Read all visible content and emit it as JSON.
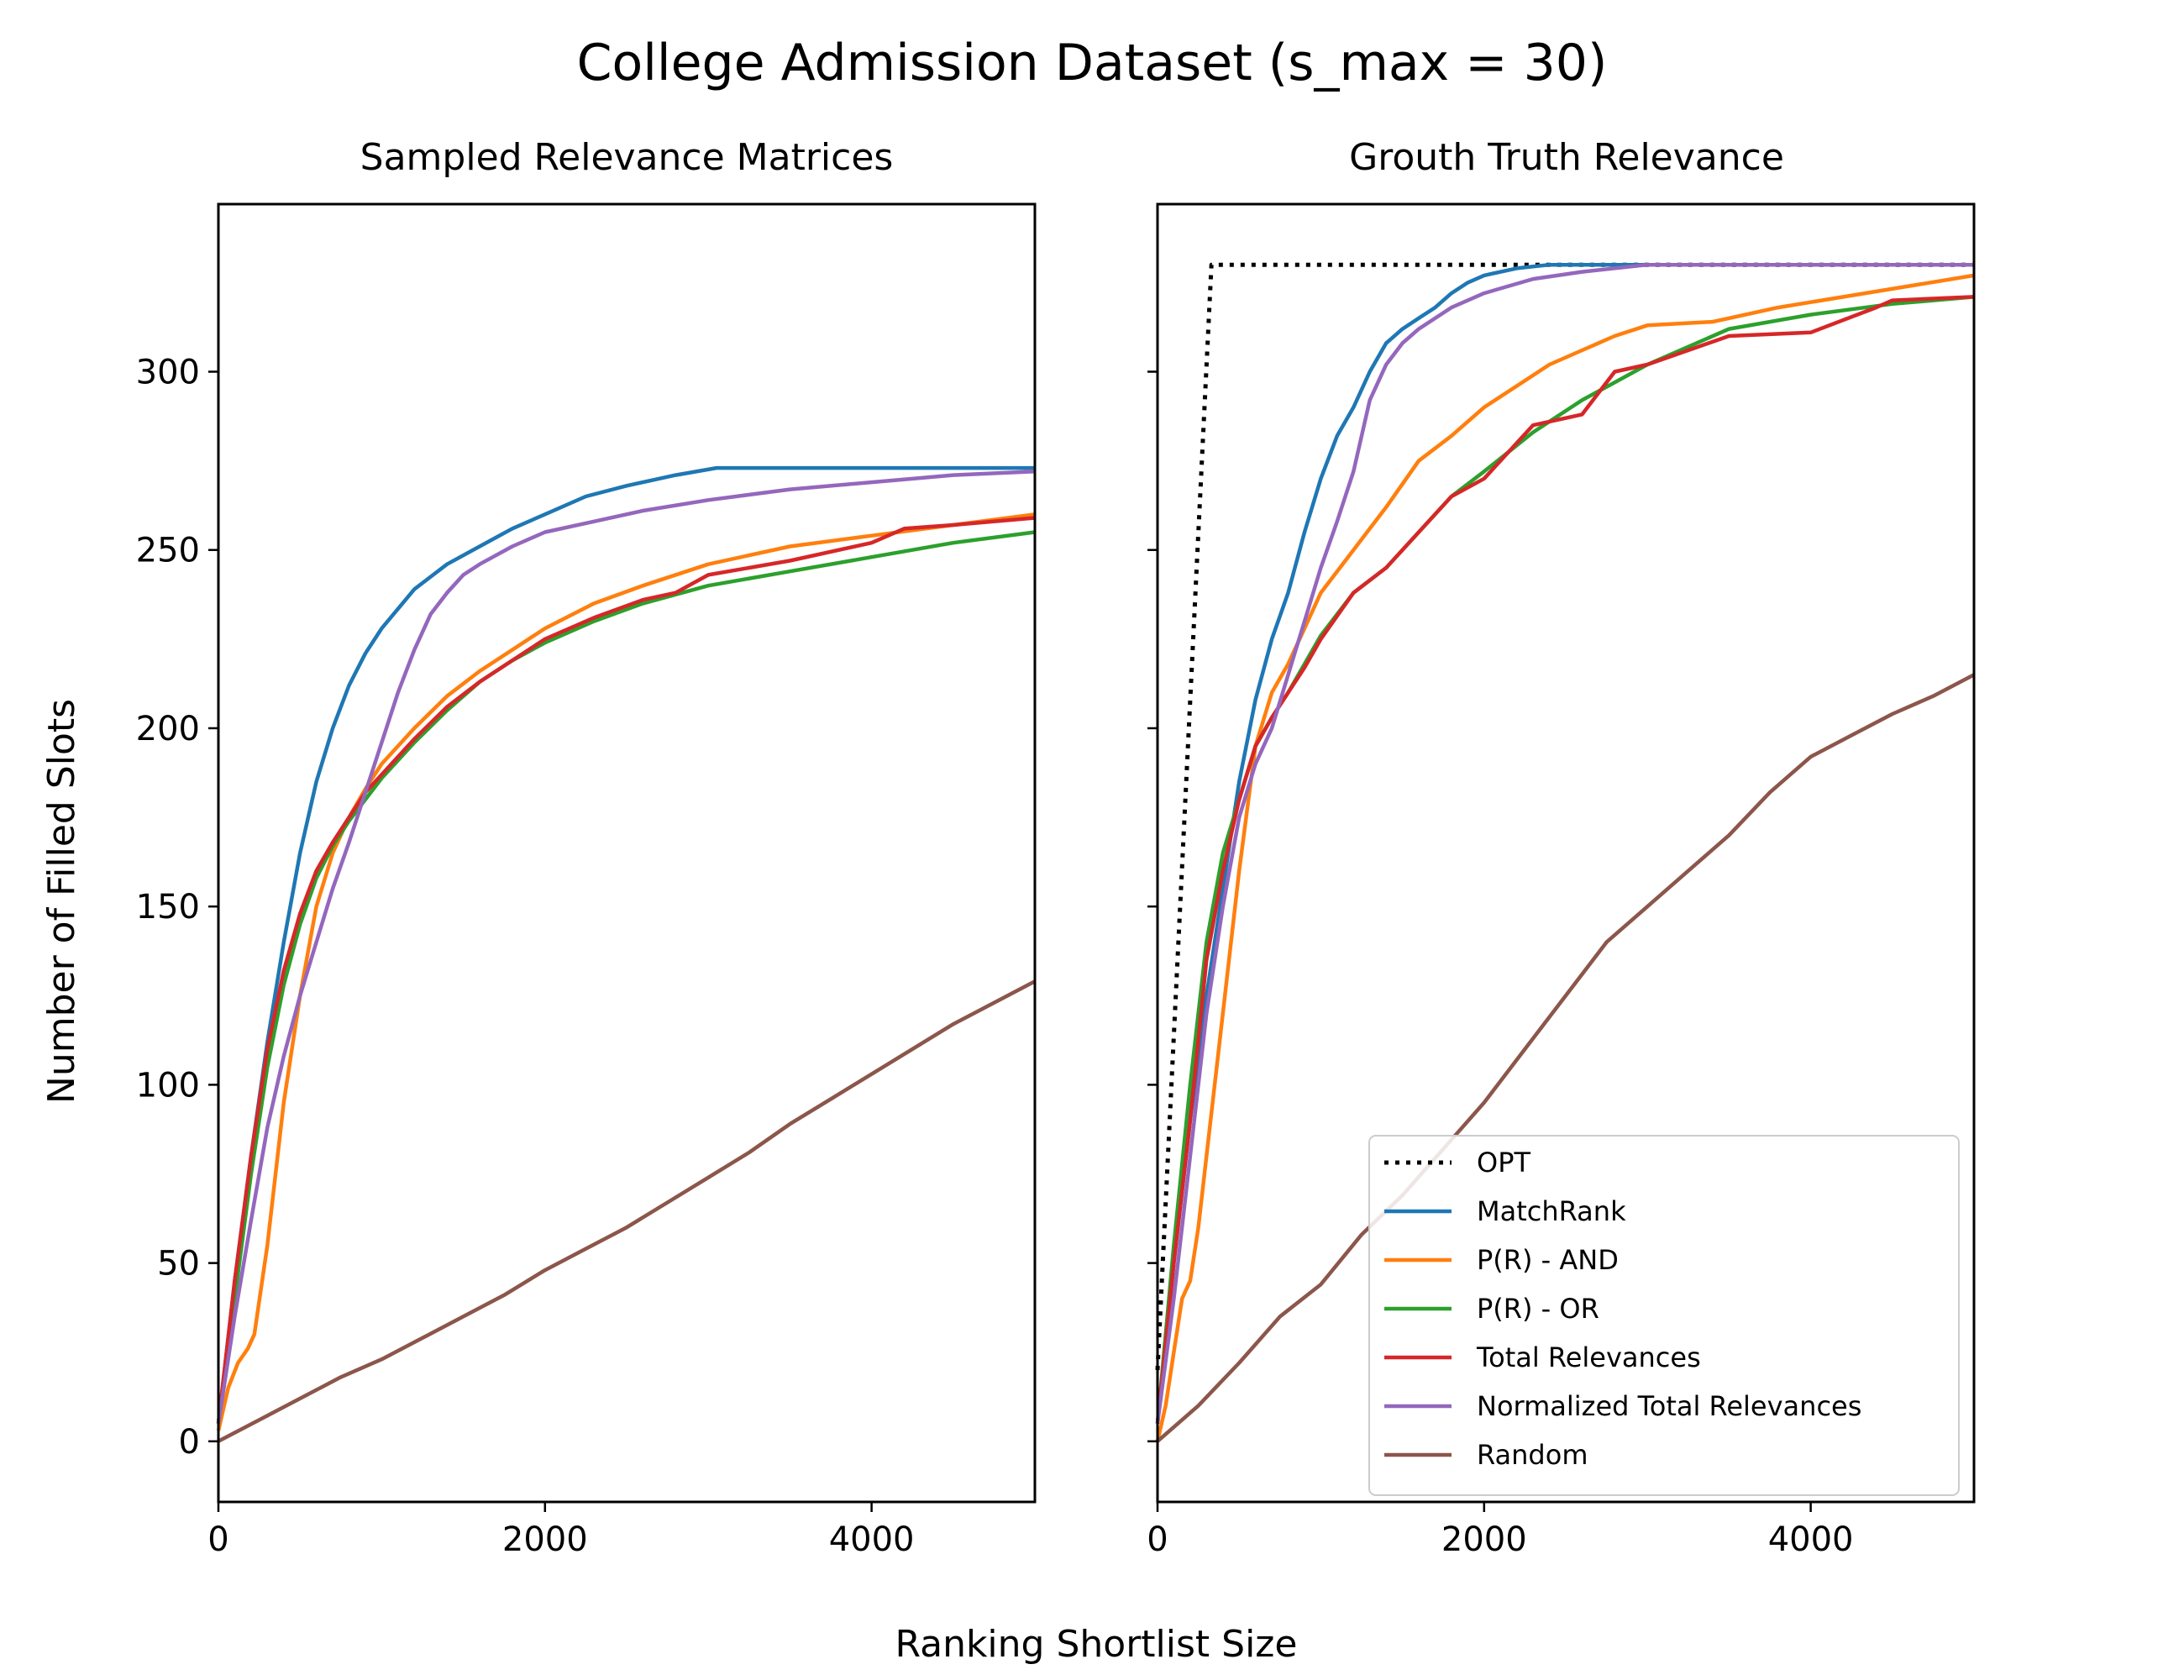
{
  "figure": {
    "title": "College Admission Dataset (s_max = 30)",
    "xlabel": "Ranking Shortlist Size",
    "ylabel": "Number of Filled Slots"
  },
  "colors": {
    "OPT": "#000000",
    "MatchRank": "#1f77b4",
    "P(R) - AND": "#ff7f0e",
    "P(R) - OR": "#2ca02c",
    "Total Relevances": "#d62728",
    "Normalized Total Relevances": "#9467bd",
    "Random": "#8c564b"
  },
  "chart_data": [
    {
      "type": "line",
      "title": "Sampled Relevance Matrices",
      "xlim": [
        0,
        5000
      ],
      "ylim": [
        -17,
        347
      ],
      "xticks": [
        0,
        2000,
        4000
      ],
      "yticks": [
        0,
        50,
        100,
        150,
        200,
        250,
        300
      ],
      "show_ytick_labels": true,
      "legend": null,
      "series": [
        {
          "name": "MatchRank",
          "style": "solid",
          "x": [
            0,
            100,
            200,
            300,
            400,
            500,
            600,
            700,
            800,
            900,
            1000,
            1200,
            1400,
            1600,
            1800,
            2000,
            2250,
            2500,
            2800,
            3050,
            3500,
            4000,
            4500,
            5000
          ],
          "y": [
            5,
            45,
            80,
            112,
            140,
            165,
            185,
            200,
            212,
            221,
            228,
            239,
            246,
            251,
            256,
            260,
            265,
            268,
            271,
            273,
            273,
            273,
            273,
            273
          ]
        },
        {
          "name": "P(R) - AND",
          "style": "solid",
          "x": [
            0,
            60,
            120,
            180,
            220,
            300,
            400,
            500,
            600,
            700,
            800,
            900,
            1000,
            1200,
            1400,
            1600,
            1800,
            2000,
            2300,
            2600,
            3000,
            3500,
            4000,
            4500,
            5000
          ],
          "y": [
            3,
            15,
            22,
            26,
            30,
            55,
            95,
            125,
            150,
            165,
            175,
            183,
            190,
            200,
            209,
            216,
            222,
            228,
            235,
            240,
            246,
            251,
            254,
            257,
            260
          ]
        },
        {
          "name": "P(R) - OR",
          "style": "solid",
          "x": [
            0,
            100,
            200,
            300,
            400,
            500,
            600,
            700,
            800,
            900,
            1000,
            1200,
            1400,
            1600,
            1800,
            2000,
            2300,
            2600,
            3000,
            3500,
            4000,
            4500,
            5000
          ],
          "y": [
            5,
            40,
            75,
            105,
            128,
            145,
            158,
            167,
            174,
            180,
            186,
            196,
            205,
            213,
            219,
            224,
            230,
            235,
            240,
            244,
            248,
            252,
            255
          ]
        },
        {
          "name": "Total Relevances",
          "style": "solid",
          "x": [
            0,
            100,
            200,
            300,
            400,
            500,
            600,
            700,
            800,
            900,
            1000,
            1200,
            1400,
            1600,
            1800,
            2000,
            2300,
            2600,
            2800,
            3000,
            3500,
            4000,
            4200,
            4500,
            5000
          ],
          "y": [
            5,
            45,
            80,
            110,
            132,
            148,
            160,
            168,
            175,
            182,
            187,
            197,
            206,
            213,
            219,
            225,
            231,
            236,
            238,
            243,
            247,
            252,
            256,
            257,
            259
          ]
        },
        {
          "name": "Normalized Total Relevances",
          "style": "solid",
          "x": [
            0,
            100,
            200,
            300,
            400,
            500,
            600,
            700,
            800,
            900,
            1000,
            1100,
            1200,
            1300,
            1400,
            1500,
            1600,
            1800,
            2000,
            2300,
            2600,
            3000,
            3500,
            4000,
            4500,
            5000
          ],
          "y": [
            5,
            35,
            62,
            88,
            108,
            125,
            140,
            155,
            168,
            182,
            196,
            210,
            222,
            232,
            238,
            243,
            246,
            251,
            255,
            258,
            261,
            264,
            267,
            269,
            271,
            272
          ]
        },
        {
          "name": "Random",
          "style": "solid",
          "x": [
            0,
            250,
            500,
            750,
            1000,
            1250,
            1500,
            1750,
            2000,
            2250,
            2500,
            2750,
            3000,
            3250,
            3500,
            3750,
            4000,
            4250,
            4500,
            4750,
            5000
          ],
          "y": [
            0,
            6,
            12,
            18,
            23,
            29,
            35,
            41,
            48,
            54,
            60,
            67,
            74,
            81,
            89,
            96,
            103,
            110,
            117,
            123,
            129
          ]
        }
      ]
    },
    {
      "type": "line",
      "title": "Grouth Truth Relevance",
      "xlim": [
        0,
        5000
      ],
      "ylim": [
        -17,
        347
      ],
      "xticks": [
        0,
        2000,
        4000
      ],
      "yticks": [
        0,
        50,
        100,
        150,
        200,
        250,
        300
      ],
      "show_ytick_labels": false,
      "legend": "lower-right",
      "series": [
        {
          "name": "OPT",
          "style": "dotted",
          "x": [
            0,
            330,
            5000
          ],
          "y": [
            20,
            330,
            330
          ]
        },
        {
          "name": "MatchRank",
          "style": "solid",
          "x": [
            0,
            100,
            200,
            300,
            400,
            500,
            600,
            700,
            800,
            900,
            1000,
            1100,
            1200,
            1300,
            1400,
            1500,
            1600,
            1700,
            1800,
            1900,
            2000,
            2200,
            2400,
            2700,
            3000,
            5000
          ],
          "y": [
            5,
            50,
            90,
            125,
            155,
            185,
            208,
            225,
            238,
            255,
            270,
            282,
            290,
            300,
            308,
            312,
            315,
            318,
            322,
            325,
            327,
            329,
            330,
            330,
            330,
            330
          ]
        },
        {
          "name": "P(R) - AND",
          "style": "solid",
          "x": [
            0,
            50,
            100,
            150,
            200,
            250,
            300,
            400,
            500,
            600,
            700,
            800,
            900,
            1000,
            1200,
            1400,
            1600,
            1800,
            2000,
            2200,
            2400,
            2600,
            2800,
            3000,
            3400,
            3800,
            4200,
            4600,
            5000
          ],
          "y": [
            0,
            10,
            25,
            40,
            45,
            60,
            80,
            120,
            160,
            195,
            210,
            218,
            228,
            238,
            250,
            262,
            275,
            282,
            290,
            296,
            302,
            306,
            310,
            313,
            314,
            318,
            321,
            324,
            327
          ]
        },
        {
          "name": "P(R) - OR",
          "style": "solid",
          "x": [
            0,
            100,
            200,
            300,
            400,
            500,
            600,
            700,
            800,
            900,
            1000,
            1200,
            1400,
            1600,
            1800,
            2000,
            2300,
            2600,
            3000,
            3500,
            4000,
            4500,
            5000
          ],
          "y": [
            5,
            55,
            100,
            140,
            165,
            180,
            195,
            203,
            210,
            218,
            226,
            238,
            245,
            255,
            265,
            272,
            283,
            292,
            302,
            312,
            316,
            319,
            321
          ]
        },
        {
          "name": "Total Relevances",
          "style": "solid",
          "x": [
            0,
            100,
            200,
            300,
            400,
            500,
            600,
            700,
            800,
            900,
            1000,
            1200,
            1400,
            1600,
            1800,
            2000,
            2300,
            2600,
            2800,
            3000,
            3500,
            4000,
            4400,
            4500,
            5000
          ],
          "y": [
            5,
            50,
            90,
            135,
            160,
            180,
            195,
            203,
            210,
            217,
            225,
            238,
            245,
            255,
            265,
            270,
            285,
            288,
            300,
            302,
            310,
            311,
            318,
            320,
            321
          ]
        },
        {
          "name": "Normalized Total Relevances",
          "style": "solid",
          "x": [
            0,
            100,
            200,
            300,
            400,
            500,
            600,
            700,
            800,
            900,
            1000,
            1100,
            1200,
            1300,
            1400,
            1500,
            1600,
            1800,
            2000,
            2300,
            2600,
            3000,
            3500,
            4000,
            4500,
            5000
          ],
          "y": [
            5,
            40,
            80,
            120,
            150,
            175,
            190,
            200,
            215,
            230,
            245,
            258,
            272,
            292,
            302,
            308,
            312,
            318,
            322,
            326,
            328,
            330,
            330,
            330,
            330,
            330
          ]
        },
        {
          "name": "Random",
          "style": "solid",
          "x": [
            0,
            250,
            500,
            750,
            1000,
            1250,
            1500,
            1750,
            2000,
            2250,
            2500,
            2750,
            3000,
            3250,
            3500,
            3750,
            4000,
            4250,
            4500,
            4750,
            5000
          ],
          "y": [
            0,
            10,
            22,
            35,
            44,
            58,
            69,
            82,
            95,
            110,
            125,
            140,
            150,
            160,
            170,
            182,
            192,
            198,
            204,
            209,
            215
          ]
        }
      ]
    }
  ]
}
